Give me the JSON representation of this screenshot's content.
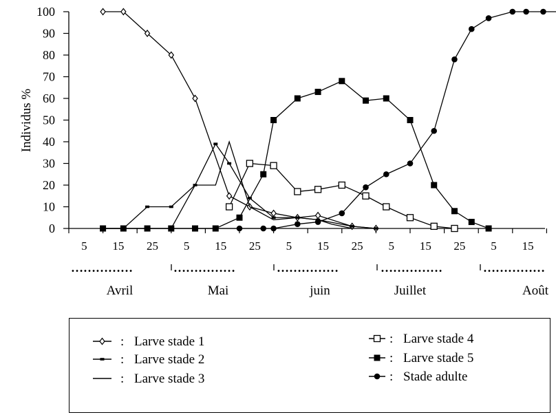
{
  "chart_data": {
    "type": "line",
    "ylabel": "Individus %",
    "ylim": [
      0,
      100
    ],
    "yticks": [
      0,
      10,
      20,
      30,
      40,
      50,
      60,
      70,
      80,
      90,
      100
    ],
    "x_tick_labels": [
      "5",
      "15",
      "25",
      "5",
      "15",
      "25",
      "5",
      "15",
      "25",
      "5",
      "15",
      "25",
      "5",
      "15"
    ],
    "months": [
      "Avril",
      "Mai",
      "juin",
      "Juillet",
      "Août"
    ],
    "month_separator": "……………",
    "legend_separator": ":",
    "series": [
      {
        "name": "Larve stade 1",
        "marker": "diamond-open",
        "points": [
          [
            1,
            100
          ],
          [
            1.6,
            100
          ],
          [
            2.3,
            90
          ],
          [
            3,
            80
          ],
          [
            3.7,
            60
          ],
          [
            4.7,
            15
          ],
          [
            5.3,
            10
          ],
          [
            6,
            7
          ],
          [
            6.7,
            5
          ],
          [
            7.3,
            6
          ],
          [
            8.3,
            1
          ],
          [
            9,
            0
          ]
        ]
      },
      {
        "name": "Larve stade 2",
        "marker": "dash",
        "points": [
          [
            1,
            0
          ],
          [
            1.6,
            0
          ],
          [
            2.3,
            10
          ],
          [
            3,
            10
          ],
          [
            3.7,
            20
          ],
          [
            4.3,
            39
          ],
          [
            4.7,
            30
          ],
          [
            5.3,
            14
          ],
          [
            6,
            5
          ],
          [
            6.7,
            5
          ],
          [
            7.3,
            4
          ],
          [
            8.3,
            1
          ],
          [
            9,
            0
          ]
        ]
      },
      {
        "name": "Larve stade 3",
        "marker": "none",
        "points": [
          [
            1,
            0
          ],
          [
            1.6,
            0
          ],
          [
            2.3,
            0
          ],
          [
            3,
            0
          ],
          [
            3.7,
            20
          ],
          [
            4.3,
            20
          ],
          [
            4.7,
            40
          ],
          [
            5.3,
            10
          ],
          [
            6,
            4
          ],
          [
            6.7,
            5
          ],
          [
            7.3,
            4
          ],
          [
            7.7,
            2
          ],
          [
            8.3,
            0
          ]
        ]
      },
      {
        "name": "Larve stade 4",
        "marker": "square-open",
        "points": [
          [
            4.7,
            10
          ],
          [
            5.3,
            30
          ],
          [
            6,
            29
          ],
          [
            6.7,
            17
          ],
          [
            7.3,
            18
          ],
          [
            8,
            20
          ],
          [
            8.7,
            15
          ],
          [
            9.3,
            10
          ],
          [
            10,
            5
          ],
          [
            10.7,
            1
          ],
          [
            11.3,
            0
          ]
        ]
      },
      {
        "name": "Larve stade 5",
        "marker": "square-filled",
        "points": [
          [
            1,
            0
          ],
          [
            1.6,
            0
          ],
          [
            2.3,
            0
          ],
          [
            3,
            0
          ],
          [
            3.7,
            0
          ],
          [
            4.3,
            0
          ],
          [
            5,
            5
          ],
          [
            5.7,
            25
          ],
          [
            6,
            50
          ],
          [
            6.7,
            60
          ],
          [
            7.3,
            63
          ],
          [
            8,
            68
          ],
          [
            8.7,
            59
          ],
          [
            9.3,
            60
          ],
          [
            10,
            50
          ],
          [
            10.7,
            20
          ],
          [
            11.3,
            8
          ],
          [
            11.8,
            3
          ],
          [
            12.3,
            0
          ]
        ]
      },
      {
        "name": "Stade adulte",
        "marker": "circle-filled",
        "points": [
          [
            1,
            0
          ],
          [
            1.6,
            0
          ],
          [
            2.3,
            0
          ],
          [
            3,
            0
          ],
          [
            3.7,
            0
          ],
          [
            4.3,
            0
          ],
          [
            5,
            0
          ],
          [
            5.7,
            0
          ],
          [
            6,
            0
          ],
          [
            6.7,
            2
          ],
          [
            7.3,
            3
          ],
          [
            8,
            7
          ],
          [
            8.7,
            19
          ],
          [
            9.3,
            25
          ],
          [
            10,
            30
          ],
          [
            10.7,
            45
          ],
          [
            11.3,
            78
          ],
          [
            11.8,
            92
          ],
          [
            12.3,
            97
          ],
          [
            13,
            100
          ],
          [
            13.4,
            100
          ],
          [
            13.9,
            100
          ],
          [
            14.5,
            100
          ]
        ]
      }
    ]
  }
}
